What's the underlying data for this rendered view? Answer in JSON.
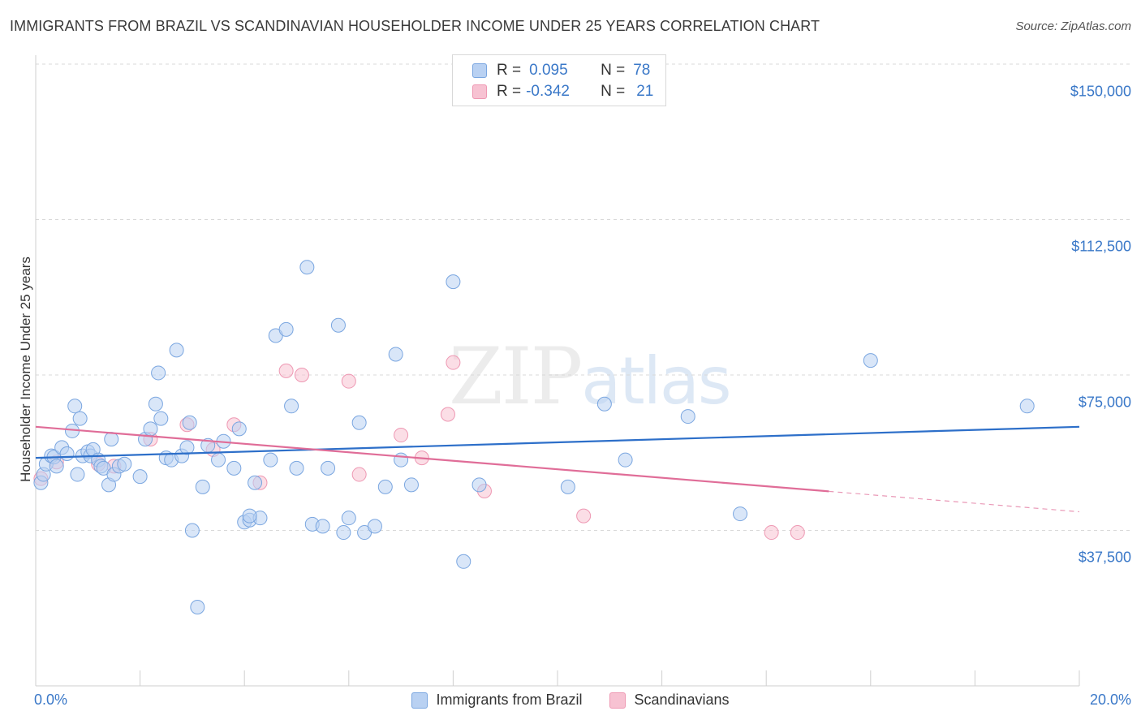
{
  "title": "IMMIGRANTS FROM BRAZIL VS SCANDINAVIAN HOUSEHOLDER INCOME UNDER 25 YEARS CORRELATION CHART",
  "source": "Source: ZipAtlas.com",
  "watermark": {
    "zip": "ZIP",
    "atlas": "atlas"
  },
  "legend": {
    "rows": [
      {
        "r_label": "R =",
        "r_value": "0.095",
        "n_label": "N =",
        "n_value": "78"
      },
      {
        "r_label": "R =",
        "r_value": "-0.342",
        "n_label": "N =",
        "n_value": "21"
      }
    ]
  },
  "colors": {
    "blue_fill": "#b9d1f2",
    "blue_stroke": "#7aa6e0",
    "blue_line": "#2d6fc9",
    "pink_fill": "#f7c2d2",
    "pink_stroke": "#ee98b3",
    "pink_line": "#e06d98",
    "grid": "#d9d9d9",
    "axis_text": "#3a78c8"
  },
  "chart_data": {
    "type": "scatter",
    "title": "IMMIGRANTS FROM BRAZIL VS SCANDINAVIAN HOUSEHOLDER INCOME UNDER 25 YEARS CORRELATION CHART",
    "xlabel": "",
    "ylabel": "Householder Income Under 25 years",
    "xlim": [
      0,
      20
    ],
    "ylim": [
      0,
      150000
    ],
    "x_tick_labels": [
      "0.0%",
      "20.0%"
    ],
    "y_ticks": [
      {
        "value": 37500,
        "label": "$37,500"
      },
      {
        "value": 75000,
        "label": "$75,000"
      },
      {
        "value": 112500,
        "label": "$112,500"
      },
      {
        "value": 150000,
        "label": "$150,000"
      }
    ],
    "series": [
      {
        "name": "Immigrants from Brazil",
        "color": "blue",
        "trend": {
          "x": [
            0,
            20
          ],
          "y": [
            55000,
            62500
          ],
          "dashed_from": null
        },
        "points": [
          [
            0.1,
            49000
          ],
          [
            0.15,
            51000
          ],
          [
            0.2,
            53500
          ],
          [
            0.3,
            55500
          ],
          [
            0.35,
            55200
          ],
          [
            0.4,
            53000
          ],
          [
            0.5,
            57500
          ],
          [
            0.6,
            56000
          ],
          [
            0.7,
            61500
          ],
          [
            0.75,
            67500
          ],
          [
            0.8,
            51000
          ],
          [
            0.85,
            64500
          ],
          [
            0.9,
            55500
          ],
          [
            1.0,
            56500
          ],
          [
            1.05,
            55500
          ],
          [
            1.1,
            57000
          ],
          [
            1.2,
            54500
          ],
          [
            1.25,
            53000
          ],
          [
            1.3,
            52500
          ],
          [
            1.4,
            48500
          ],
          [
            1.45,
            59500
          ],
          [
            1.5,
            51000
          ],
          [
            1.6,
            53000
          ],
          [
            1.7,
            53500
          ],
          [
            2.0,
            50500
          ],
          [
            2.1,
            59500
          ],
          [
            2.2,
            62000
          ],
          [
            2.3,
            68000
          ],
          [
            2.35,
            75500
          ],
          [
            2.4,
            64500
          ],
          [
            2.5,
            55000
          ],
          [
            2.6,
            54500
          ],
          [
            2.7,
            81000
          ],
          [
            2.8,
            55500
          ],
          [
            2.9,
            57500
          ],
          [
            2.95,
            63500
          ],
          [
            3.2,
            48000
          ],
          [
            3.3,
            58000
          ],
          [
            3.5,
            54500
          ],
          [
            3.6,
            59000
          ],
          [
            3.8,
            52500
          ],
          [
            3.9,
            62000
          ],
          [
            4.0,
            39500
          ],
          [
            4.1,
            40000
          ],
          [
            4.2,
            49000
          ],
          [
            4.3,
            40500
          ],
          [
            4.5,
            54500
          ],
          [
            4.6,
            84500
          ],
          [
            4.8,
            86000
          ],
          [
            4.9,
            67500
          ],
          [
            5.0,
            52500
          ],
          [
            5.2,
            101000
          ],
          [
            5.3,
            39000
          ],
          [
            5.5,
            38500
          ],
          [
            5.6,
            52500
          ],
          [
            5.8,
            87000
          ],
          [
            5.9,
            37000
          ],
          [
            6.0,
            40500
          ],
          [
            6.2,
            63500
          ],
          [
            6.3,
            37000
          ],
          [
            6.5,
            38500
          ],
          [
            6.7,
            48000
          ],
          [
            6.9,
            80000
          ],
          [
            7.0,
            54500
          ],
          [
            7.2,
            48500
          ],
          [
            8.0,
            97500
          ],
          [
            8.2,
            30000
          ],
          [
            8.5,
            48500
          ],
          [
            10.2,
            48000
          ],
          [
            10.9,
            68000
          ],
          [
            11.3,
            54500
          ],
          [
            12.5,
            65000
          ],
          [
            13.5,
            41500
          ],
          [
            16.0,
            78500
          ],
          [
            19.0,
            67500
          ],
          [
            4.1,
            41000
          ],
          [
            3.0,
            37500
          ],
          [
            3.1,
            19000
          ]
        ]
      },
      {
        "name": "Scandinavians",
        "color": "pink",
        "trend": {
          "x": [
            0,
            20
          ],
          "y": [
            62500,
            42000
          ],
          "dashed_from": 15.2
        },
        "points": [
          [
            0.1,
            50000
          ],
          [
            0.4,
            54000
          ],
          [
            1.2,
            53500
          ],
          [
            1.5,
            53000
          ],
          [
            2.2,
            59500
          ],
          [
            2.9,
            63000
          ],
          [
            3.4,
            57000
          ],
          [
            3.8,
            63000
          ],
          [
            4.3,
            49000
          ],
          [
            4.8,
            76000
          ],
          [
            5.1,
            75000
          ],
          [
            6.0,
            73500
          ],
          [
            6.2,
            51000
          ],
          [
            7.0,
            60500
          ],
          [
            7.4,
            55000
          ],
          [
            7.9,
            65500
          ],
          [
            8.0,
            78000
          ],
          [
            8.6,
            47000
          ],
          [
            10.5,
            41000
          ],
          [
            14.1,
            37000
          ],
          [
            14.6,
            37000
          ]
        ]
      }
    ],
    "legend": [
      "Immigrants from Brazil",
      "Scandinavians"
    ],
    "grid": "horizontal dashed"
  }
}
